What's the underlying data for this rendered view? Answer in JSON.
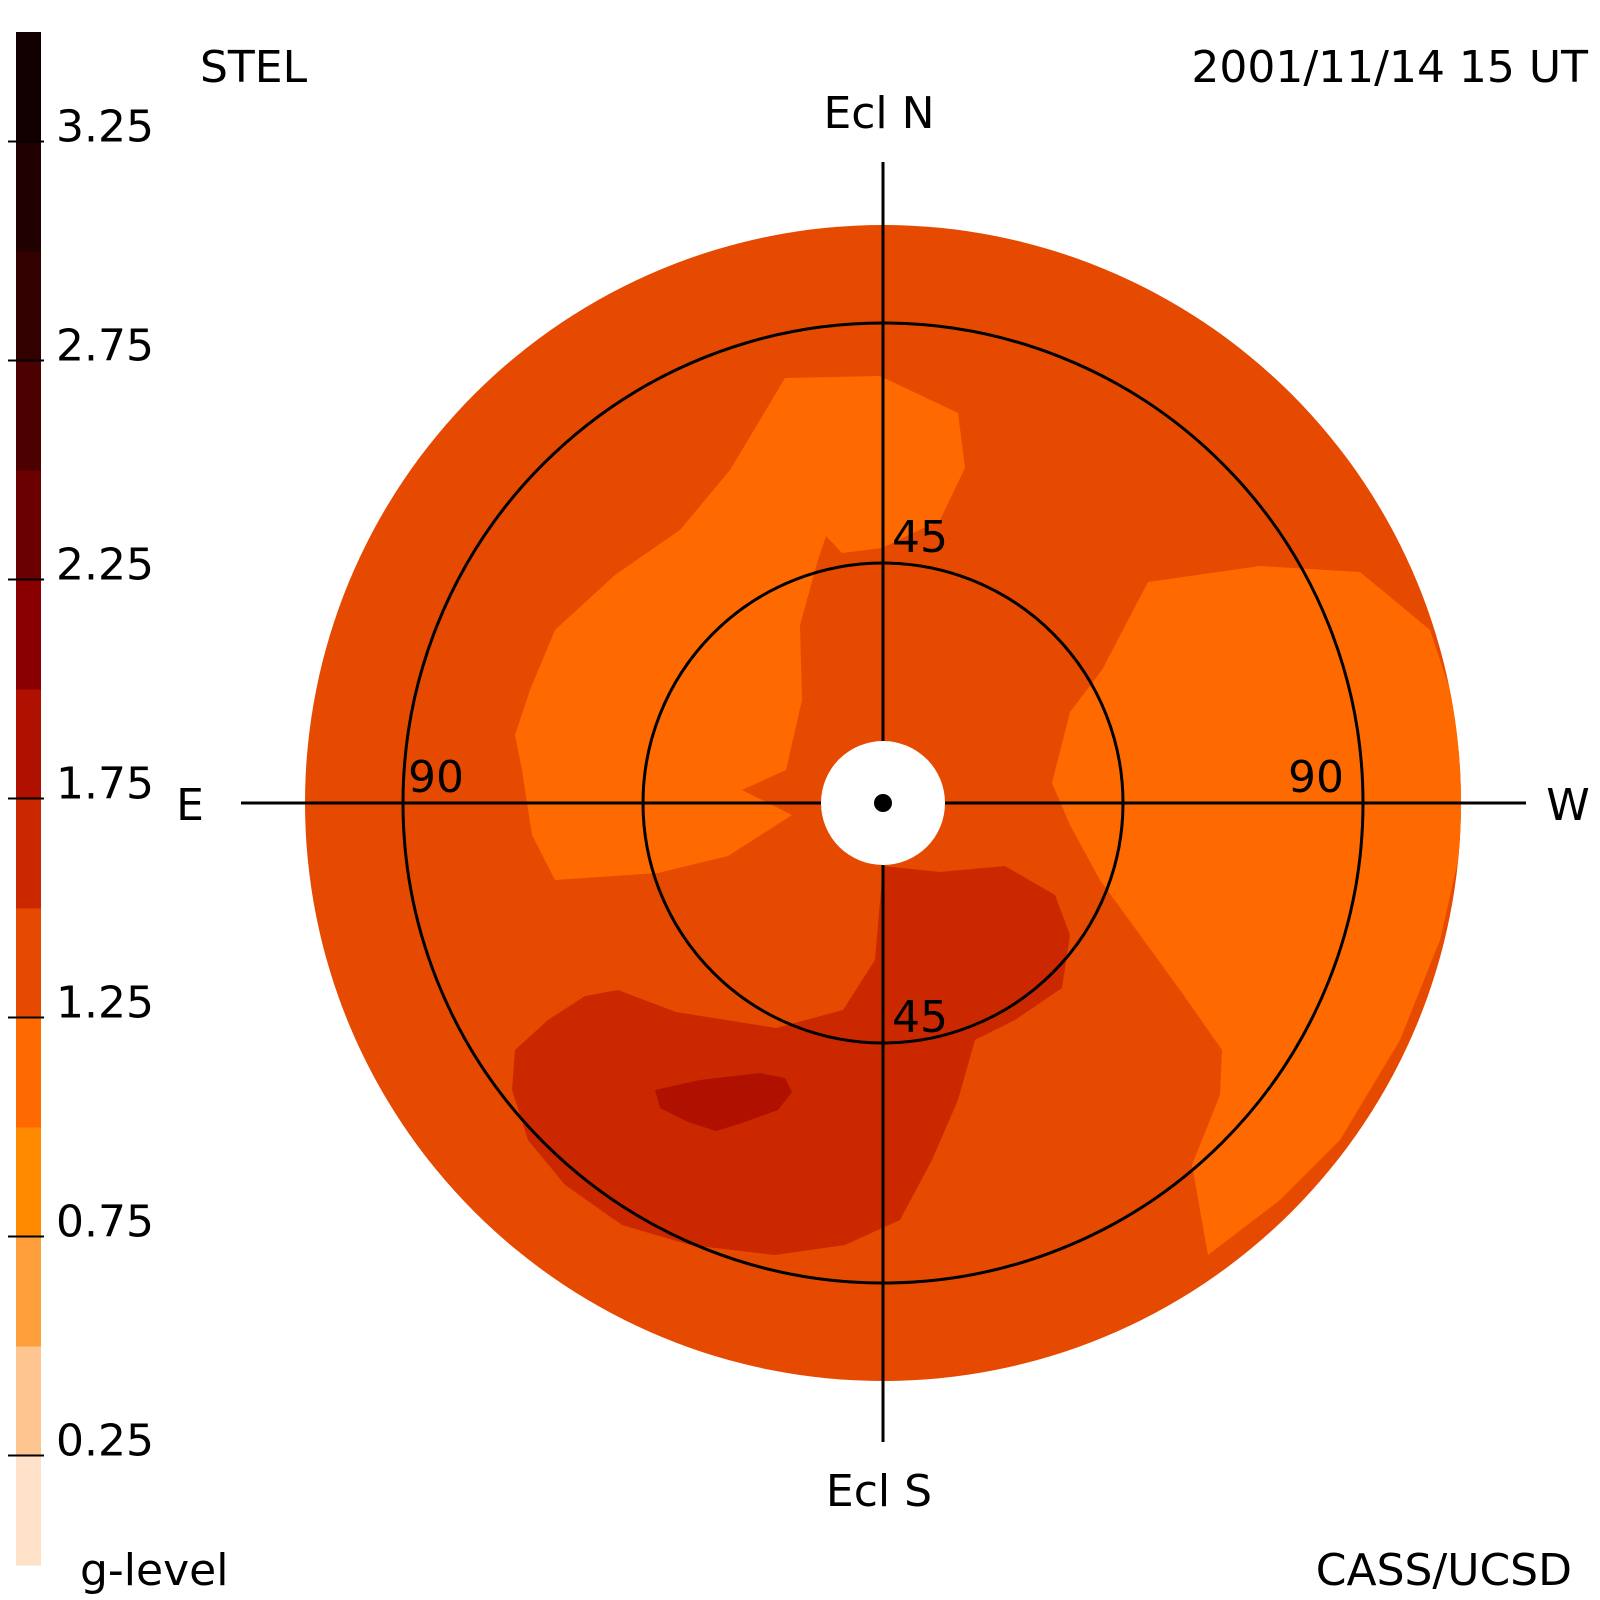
{
  "header": {
    "instrument": "STEL",
    "timestamp": "2001/11/14 15 UT",
    "credit": "CASS/UCSD"
  },
  "directions": {
    "north": "Ecl N",
    "south": "Ecl S",
    "east": "E",
    "west": "W"
  },
  "colorbar": {
    "title": "g-level",
    "tick_labels": [
      "3.25",
      "2.75",
      "2.25",
      "1.75",
      "1.25",
      "0.75",
      "0.25"
    ],
    "bands_bottom_to_top": [
      {
        "min": 0.0,
        "max": 0.25,
        "color": "#ffe0c8"
      },
      {
        "min": 0.25,
        "max": 0.5,
        "color": "#ffc590"
      },
      {
        "min": 0.5,
        "max": 0.75,
        "color": "#ff9f3c"
      },
      {
        "min": 0.75,
        "max": 1.0,
        "color": "#ff8a00"
      },
      {
        "min": 1.0,
        "max": 1.25,
        "color": "#ff6a00"
      },
      {
        "min": 1.25,
        "max": 1.5,
        "color": "#e54a00"
      },
      {
        "min": 1.5,
        "max": 1.75,
        "color": "#cc2800"
      },
      {
        "min": 1.75,
        "max": 2.0,
        "color": "#b01000"
      },
      {
        "min": 2.0,
        "max": 2.25,
        "color": "#8a0000"
      },
      {
        "min": 2.25,
        "max": 2.5,
        "color": "#6a0000"
      },
      {
        "min": 2.5,
        "max": 2.75,
        "color": "#4c0000"
      },
      {
        "min": 2.75,
        "max": 3.0,
        "color": "#330000"
      },
      {
        "min": 3.0,
        "max": 3.25,
        "color": "#200000"
      },
      {
        "min": 3.25,
        "max": 3.5,
        "color": "#120000"
      }
    ]
  },
  "chart_data": {
    "type": "heatmap",
    "projection": "polar sky map, elongation from Sun",
    "ring_labels": {
      "inner_north": "45",
      "inner_south": "45",
      "outer_east": "90",
      "outer_west": "90"
    },
    "rings_deg": [
      45,
      90
    ],
    "max_elongation_deg": 120,
    "sun_occulter_deg": 12,
    "background_level_range": [
      1.25,
      1.5
    ],
    "regions": [
      {
        "level_range": [
          1.0,
          1.25
        ],
        "area": "upper-left lobe, north of Sun toward east",
        "color": "#ff6a00"
      },
      {
        "level_range": [
          1.0,
          1.25
        ],
        "area": "west lobe, right of Sun",
        "color": "#ff6a00"
      },
      {
        "level_range": [
          1.5,
          1.75
        ],
        "area": "south-southeast band below Sun",
        "color": "#cc2800"
      },
      {
        "level_range": [
          1.75,
          2.0
        ],
        "area": "small core inside south-southeast band",
        "color": "#b01000"
      }
    ]
  }
}
